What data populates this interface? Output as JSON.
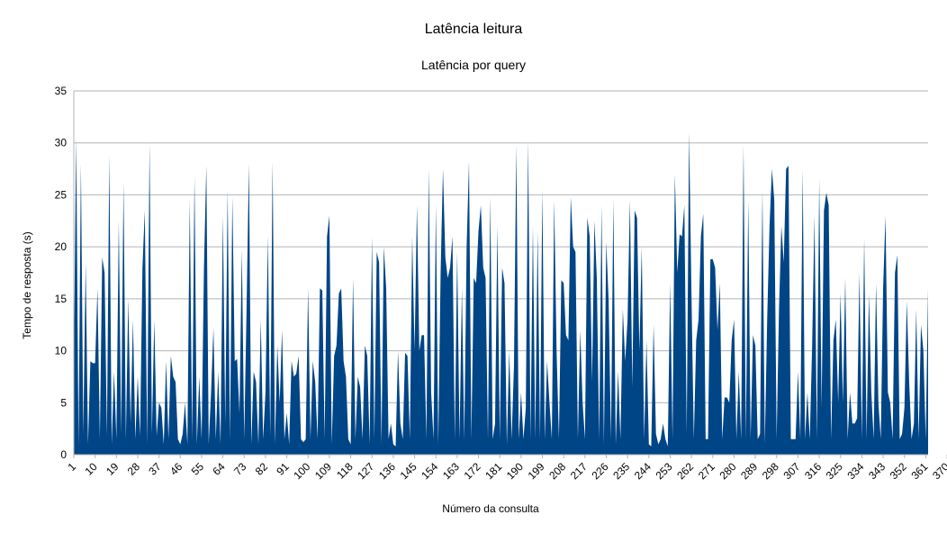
{
  "chart_data": {
    "type": "area",
    "title": "Latência leitura",
    "subtitle": "Latência por query",
    "xlabel": "Número da consulta",
    "ylabel": "Tempo de resposta (s)",
    "ylim": [
      0,
      35
    ],
    "yticks": [
      0,
      5,
      10,
      15,
      20,
      25,
      30,
      35
    ],
    "x_start": 1,
    "x_end": 391,
    "x_tick_step": 9,
    "grid": "horizontal",
    "legend": "none",
    "series": [
      {
        "color": "#004586",
        "values": [
          8.5,
          30.5,
          0.8,
          28,
          2.0,
          18.5,
          1.0,
          9.0,
          8.8,
          8.8,
          16.0,
          1.5,
          19.0,
          17.5,
          1.8,
          28.8,
          1.0,
          8.0,
          1.5,
          22.5,
          2.0,
          26.2,
          1.5,
          15.0,
          3.0,
          13.0,
          1.5,
          7.5,
          1.8,
          18.0,
          23.5,
          1.0,
          30.0,
          2.0,
          13.0,
          1.8,
          5.0,
          4.5,
          1.0,
          9.0,
          1.5,
          9.5,
          7.5,
          7.0,
          1.5,
          1.0,
          2.0,
          5.0,
          1.0,
          24.5,
          1.5,
          26.8,
          1.0,
          7.5,
          1.5,
          18.0,
          27.8,
          1.0,
          6.0,
          12.2,
          1.5,
          8.0,
          1.0,
          23.0,
          3.0,
          25.5,
          1.5,
          24.8,
          9.0,
          9.2,
          4.0,
          19.8,
          1.5,
          14.0,
          28.0,
          1.0,
          8.0,
          7.0,
          1.0,
          13.0,
          1.5,
          6.0,
          21.0,
          1.8,
          28.2,
          1.0,
          10.5,
          5.0,
          12.0,
          1.5,
          4.0,
          1.0,
          9.0,
          7.5,
          7.8,
          9.5,
          1.5,
          1.2,
          1.5,
          16.0,
          1.5,
          9.0,
          7.0,
          1.5,
          16.0,
          15.8,
          1.5,
          21.0,
          23.0,
          1.0,
          9.5,
          10.5,
          15.5,
          16.0,
          9.0,
          7.5,
          1.5,
          1.0,
          17.0,
          1.5,
          7.5,
          6.5,
          1.5,
          10.5,
          9.5,
          1.0,
          21.0,
          1.5,
          19.5,
          18.5,
          1.0,
          20.0,
          16.0,
          1.5,
          3.0,
          1.0,
          0.8,
          10.0,
          3.0,
          1.5,
          9.8,
          9.5,
          1.5,
          21.0,
          10.0,
          24.0,
          10.0,
          11.5,
          11.5,
          1.5,
          27.5,
          6.0,
          1.5,
          24.0,
          1.0,
          17.5,
          27.5,
          19.0,
          17.0,
          18.0,
          21.0,
          1.5,
          19.5,
          1.5,
          16.0,
          1.5,
          20.0,
          28.2,
          1.5,
          17.0,
          16.5,
          21.5,
          24.0,
          18.0,
          17.0,
          1.5,
          24.8,
          1.5,
          3.0,
          22.0,
          1.5,
          18.0,
          16.5,
          1.0,
          10.0,
          1.5,
          8.5,
          29.8,
          1.5,
          6.0,
          1.5,
          4.5,
          30.2,
          1.5,
          22.0,
          1.5,
          21.5,
          1.5,
          25.5,
          1.5,
          9.0,
          5.0,
          1.5,
          24.5,
          10.0,
          1.5,
          16.8,
          16.5,
          11.5,
          11.0,
          24.8,
          20.0,
          19.5,
          1.5,
          12.0,
          5.0,
          1.5,
          22.8,
          21.0,
          7.0,
          22.5,
          17.0,
          1.5,
          24.0,
          1.0,
          20.5,
          14.8,
          1.5,
          24.5,
          1.0,
          8.0,
          1.5,
          14.0,
          9.0,
          13.0,
          24.5,
          6.5,
          23.5,
          22.8,
          10.0,
          20.0,
          1.5,
          11.0,
          1.0,
          0.8,
          12.5,
          2.0,
          1.0,
          1.5,
          3.0,
          1.5,
          0.8,
          16.5,
          1.5,
          27.0,
          17.5,
          21.2,
          21.0,
          24.0,
          2.0,
          31.0,
          15.5,
          1.5,
          11.0,
          13.0,
          21.0,
          23.2,
          1.5,
          1.5,
          18.8,
          18.8,
          18.0,
          12.0,
          16.5,
          1.5,
          5.5,
          5.5,
          5.0,
          11.0,
          13.0,
          1.5,
          8.0,
          1.5,
          29.8,
          1.5,
          24.5,
          1.5,
          11.5,
          10.5,
          1.5,
          2.0,
          25.5,
          1.0,
          13.0,
          22.0,
          27.5,
          24.5,
          1.5,
          14.0,
          22.0,
          18.5,
          27.5,
          27.8,
          1.5,
          1.5,
          1.5,
          8.0,
          1.5,
          27.5,
          1.5,
          6.0,
          1.5,
          10.5,
          23.0,
          1.5,
          26.5,
          4.5,
          23.5,
          25.2,
          24.0,
          1.5,
          11.0,
          13.0,
          5.0,
          15.5,
          5.0,
          17.0,
          1.5,
          6.0,
          3.0,
          3.0,
          3.5,
          17.5,
          1.5,
          20.8,
          1.5,
          15.5,
          6.0,
          1.5,
          16.5,
          5.0,
          1.5,
          16.0,
          23.0,
          6.0,
          5.0,
          1.5,
          17.5,
          19.2,
          1.5,
          2.0,
          4.5,
          14.8,
          7.0,
          1.5,
          3.0,
          14.0,
          1.5,
          12.5,
          10.0,
          1.5,
          16.0
        ]
      }
    ]
  }
}
